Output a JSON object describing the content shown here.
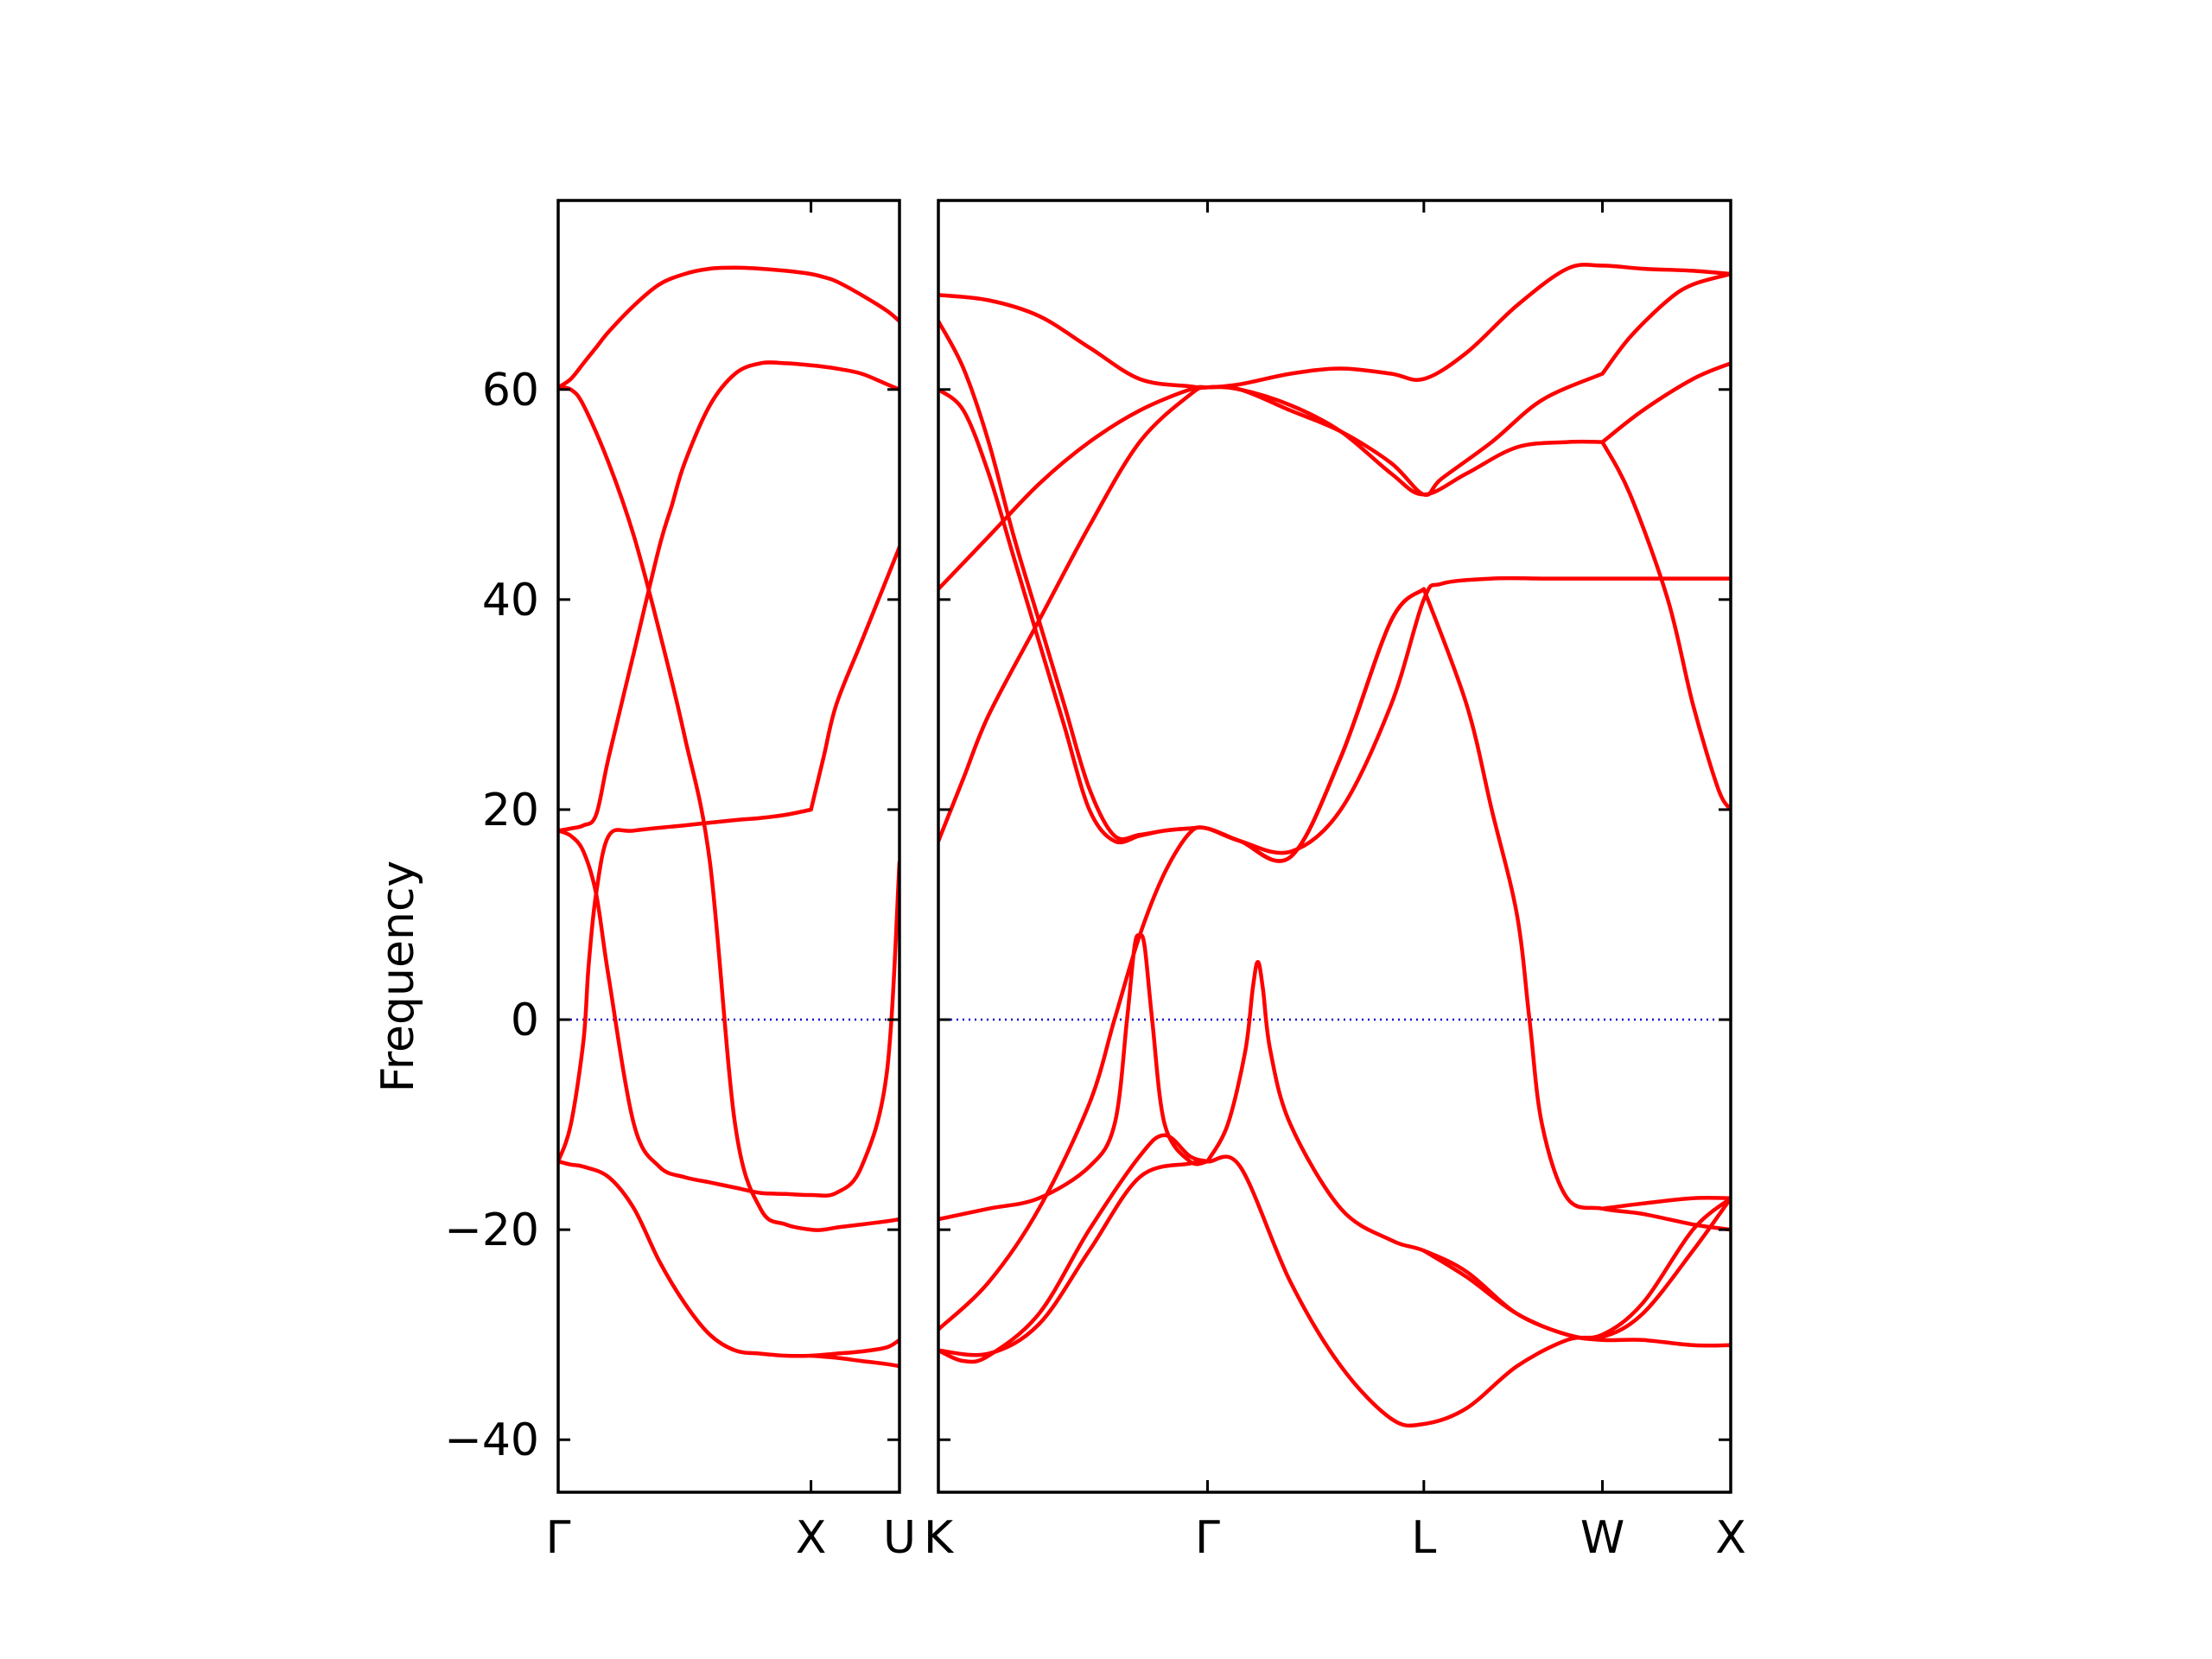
{
  "chart_data": {
    "type": "line",
    "title": "",
    "ylabel": "Frequency",
    "xlabel": "",
    "ylim": [
      -45,
      78
    ],
    "y_ticks": [
      -40,
      -20,
      0,
      20,
      40,
      60
    ],
    "y_tick_labels": [
      "−40",
      "−20",
      "0",
      "20",
      "40",
      "60"
    ],
    "band_color": "#ff0000",
    "zero_line_color": "#0000cc",
    "grid": false,
    "panels": [
      {
        "name": "panel-1",
        "x_range": [
          0,
          1.35
        ],
        "high_symmetry_points": [
          {
            "x": 0,
            "label": "Γ"
          },
          {
            "x": 1.0,
            "label": "X"
          },
          {
            "x": 1.35,
            "label": "U"
          }
        ],
        "series": [
          {
            "x": [
              0,
              0.05,
              0.1,
              0.15,
              0.2,
              0.3,
              0.4,
              0.5,
              0.6,
              0.7,
              0.8,
              0.9,
              1.0,
              1.05,
              1.1,
              1.2,
              1.3,
              1.35
            ],
            "y": [
              60.2,
              61,
              62.5,
              64,
              65.5,
              68,
              70,
              71,
              71.5,
              71.6,
              71.5,
              71.3,
              71,
              70.7,
              70.3,
              69,
              67.5,
              66.5
            ]
          },
          {
            "x": [
              0,
              0.05,
              0.1,
              0.2,
              0.3,
              0.4,
              0.5,
              0.6,
              0.7,
              0.8,
              0.9,
              1.0,
              1.05,
              1.1,
              1.2,
              1.3,
              1.35
            ],
            "y": [
              60.2,
              60,
              58.5,
              53,
              46,
              37,
              27,
              15,
              -10,
              -18,
              -19.5,
              -20,
              -20,
              -19.8,
              -19.5,
              -19.2,
              -19
            ]
          },
          {
            "x": [
              0,
              0.05,
              0.1,
              0.15,
              0.2,
              0.3,
              0.4,
              0.45,
              0.5,
              0.6,
              0.7,
              0.8,
              0.9,
              1.0,
              1.1,
              1.2,
              1.3,
              1.35
            ],
            "y": [
              18,
              18.2,
              18.5,
              19.5,
              25,
              35,
              45,
              49,
              53,
              58.5,
              61.5,
              62.5,
              62.5,
              62.3,
              62,
              61.5,
              60.5,
              60
            ]
          },
          {
            "x": [
              0,
              0.05,
              0.1,
              0.15,
              0.2,
              0.3,
              0.4,
              0.5,
              0.6,
              0.7,
              0.8,
              0.9,
              1.0,
              1.1,
              1.2,
              1.3,
              1.35
            ],
            "y": [
              18,
              17.5,
              16,
              12,
              4,
              -10,
              -14,
              -15,
              -15.5,
              -16,
              -16.5,
              -16.6,
              -16.7,
              -16.5,
              -14,
              -5,
              15
            ]
          },
          {
            "x": [
              0,
              0.05,
              0.1,
              0.12,
              0.15,
              0.2,
              0.3,
              0.5,
              0.7,
              0.8,
              0.9,
              1.0
            ],
            "y": [
              -13.5,
              -10,
              -2,
              5,
              12,
              17.5,
              18,
              18.5,
              19,
              19.2,
              19.5,
              20
            ]
          },
          {
            "x": [
              0,
              0.05,
              0.1,
              0.2,
              0.3,
              0.4,
              0.5,
              0.6,
              0.7,
              0.8,
              0.9,
              1.0,
              1.1,
              1.2,
              1.3,
              1.35
            ],
            "y": [
              -13.5,
              -13.8,
              -14,
              -15,
              -18,
              -23,
              -27,
              -30,
              -31.5,
              -31.8,
              -32,
              -32,
              -31.8,
              -31.6,
              -31.2,
              -30.5
            ]
          },
          {
            "x": [
              1.0,
              1.1,
              1.2,
              1.3,
              1.35
            ],
            "y": [
              -32,
              -32.2,
              -32.5,
              -32.8,
              -33
            ]
          },
          {
            "x": [
              1.0,
              1.05,
              1.1,
              1.2,
              1.3,
              1.35
            ],
            "y": [
              20,
              25,
              30,
              36,
              42,
              45
            ]
          }
        ]
      },
      {
        "name": "panel-2",
        "x_range": [
          0,
          3.15
        ],
        "high_symmetry_points": [
          {
            "x": 0,
            "label": "K"
          },
          {
            "x": 1.07,
            "label": "Γ"
          },
          {
            "x": 1.93,
            "label": "L"
          },
          {
            "x": 2.64,
            "label": "W"
          },
          {
            "x": 3.15,
            "label": "X"
          }
        ],
        "series": [
          {
            "x": [
              0,
              0.2,
              0.4,
              0.6,
              0.8,
              1.0,
              1.07,
              1.2,
              1.4,
              1.6,
              1.8,
              1.93,
              2.1,
              2.3,
              2.5,
              2.64,
              2.8,
              3.0,
              3.15
            ],
            "y": [
              69,
              68.5,
              67,
              64,
              61,
              60.3,
              60.2,
              60.5,
              61.5,
              62,
              61.5,
              61,
              63.5,
              68,
              71.5,
              71.8,
              71.5,
              71.3,
              71
            ]
          },
          {
            "x": [
              0,
              0.1,
              0.2,
              0.3,
              0.4,
              0.5,
              0.6,
              0.7,
              0.8,
              0.9,
              1.0,
              1.07,
              1.2,
              1.4,
              1.6,
              1.8,
              1.93,
              2.0,
              2.2,
              2.4,
              2.5,
              2.64,
              2.8,
              3.0,
              3.15
            ],
            "y": [
              66.5,
              62,
              55,
              46,
              38,
              30,
              22,
              17.5,
              17.6,
              18,
              18.2,
              18.2,
              17,
              16,
              20,
              30,
              40,
              41.5,
              42,
              42,
              42,
              42,
              42,
              42,
              42
            ]
          },
          {
            "x": [
              0,
              0.1,
              0.2,
              0.3,
              0.4,
              0.5,
              0.6,
              0.7,
              0.8,
              0.9,
              1.0,
              1.07,
              1.2,
              1.4,
              1.6,
              1.8,
              1.93
            ],
            "y": [
              60,
              58,
              52,
              44,
              36,
              28,
              20,
              17,
              17.5,
              18,
              18.2,
              18.2,
              17,
              15.5,
              25,
              38,
              41
            ]
          },
          {
            "x": [
              0,
              0.2,
              0.4,
              0.6,
              0.8,
              1.0,
              1.07,
              1.2,
              1.4,
              1.6,
              1.8,
              1.93,
              2.0,
              2.2,
              2.4,
              2.64
            ],
            "y": [
              41,
              46,
              51,
              55,
              58,
              60,
              60.2,
              60,
              58,
              56,
              53,
              50,
              51.5,
              55,
              59,
              61.5
            ]
          },
          {
            "x": [
              0,
              0.1,
              0.2,
              0.4,
              0.6,
              0.8,
              1.0,
              1.07,
              1.2,
              1.4,
              1.6,
              1.8,
              1.93,
              2.1,
              2.3,
              2.5,
              2.64
            ],
            "y": [
              17,
              23,
              29,
              38,
              47,
              55,
              59.5,
              60.2,
              60,
              58.5,
              56,
              52,
              50,
              52,
              54.5,
              55,
              55
            ]
          },
          {
            "x": [
              2.64,
              2.8,
              3.0,
              3.15
            ],
            "y": [
              55,
              58,
              61,
              62.5
            ]
          },
          {
            "x": [
              2.64,
              2.75,
              2.9,
              3.0,
              3.1,
              3.15
            ],
            "y": [
              55,
              50,
              40,
              30,
              22,
              20
            ]
          },
          {
            "x": [
              2.64,
              2.75,
              2.9,
              3.0,
              3.15
            ],
            "y": [
              61.5,
              65,
              68.5,
              70,
              71
            ]
          },
          {
            "x": [
              0,
              0.2,
              0.4,
              0.6,
              0.7,
              0.75,
              0.78,
              0.8,
              0.82,
              0.85,
              0.9,
              1.0,
              1.07
            ],
            "y": [
              -19,
              -18,
              -17,
              -14,
              -10,
              0,
              7,
              8,
              7,
              0,
              -10,
              -13.5,
              -13.5
            ]
          },
          {
            "x": [
              1.07,
              1.15,
              1.22,
              1.25,
              1.27,
              1.29,
              1.32,
              1.4,
              1.6,
              1.8,
              1.93,
              2.1,
              2.3,
              2.5,
              2.64,
              2.8,
              3.0,
              3.15
            ],
            "y": [
              -13.5,
              -10,
              -3,
              3,
              5.5,
              3,
              -3,
              -10,
              -18,
              -21,
              -22,
              -24,
              -28,
              -30,
              -30.5,
              -30.5,
              -31,
              -31
            ]
          },
          {
            "x": [
              0,
              0.2,
              0.4,
              0.6,
              0.7,
              0.8,
              0.9,
              1.0,
              1.07,
              1.2,
              1.4,
              1.6,
              1.8,
              1.93
            ],
            "y": [
              -29.5,
              -25,
              -18,
              -8,
              0,
              8,
              14,
              17.8,
              18.2,
              17,
              15.5,
              25,
              38,
              41
            ]
          },
          {
            "x": [
              0,
              0.1,
              0.2,
              0.4,
              0.6,
              0.8,
              0.9,
              1.0,
              1.07,
              1.2,
              1.4,
              1.6,
              1.8,
              1.93,
              2.1,
              2.3,
              2.5,
              2.64,
              2.8,
              3.0,
              3.15
            ],
            "y": [
              -31.5,
              -32.5,
              -32,
              -28,
              -20,
              -13,
              -11,
              -13,
              -13.5,
              -14,
              -25,
              -33,
              -38,
              -38.5,
              -37,
              -33,
              -30.5,
              -30,
              -27,
              -20,
              -17
            ]
          },
          {
            "x": [
              0,
              0.2,
              0.4,
              0.6,
              0.8,
              1.0,
              1.07
            ],
            "y": [
              -31.5,
              -31.8,
              -29,
              -22,
              -15,
              -13.7,
              -13.5
            ]
          },
          {
            "x": [
              1.93,
              2.1,
              2.2,
              2.3,
              2.35,
              2.4,
              2.5,
              2.64,
              2.8,
              3.0,
              3.15
            ],
            "y": [
              41,
              30,
              20,
              10,
              0,
              -10,
              -17,
              -18,
              -18.5,
              -19.5,
              -20
            ]
          },
          {
            "x": [
              1.93,
              2.1,
              2.3,
              2.5,
              2.64,
              2.8,
              3.0,
              3.15
            ],
            "y": [
              -22,
              -24.5,
              -28,
              -30,
              -30.2,
              -28,
              -22,
              -17
            ]
          },
          {
            "x": [
              2.64,
              2.8,
              3.0,
              3.15
            ],
            "y": [
              -18,
              -17.5,
              -17,
              -17
            ]
          }
        ]
      }
    ]
  }
}
